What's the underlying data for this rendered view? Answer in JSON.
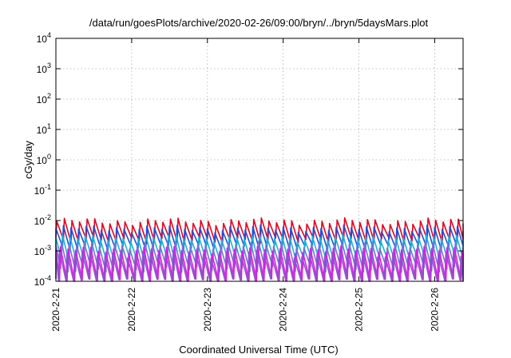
{
  "chart_data": {
    "type": "line",
    "title": "/data/run/goesPlots/archive/2020-02-26/09:00/bryn/../bryn/5daysMars.plot",
    "xlabel": "Coordinated Universal Time (UTC)",
    "ylabel": "cGy/day",
    "y_scale": "log",
    "ylim": [
      0.0001,
      10000
    ],
    "y_ticks": [
      {
        "base": "10",
        "exp": "4"
      },
      {
        "base": "10",
        "exp": "3"
      },
      {
        "base": "10",
        "exp": "2"
      },
      {
        "base": "10",
        "exp": "1"
      },
      {
        "base": "10",
        "exp": "0"
      },
      {
        "base": "10",
        "exp": "-1"
      },
      {
        "base": "10",
        "exp": "-2"
      },
      {
        "base": "10",
        "exp": "-3"
      },
      {
        "base": "10",
        "exp": "-4"
      }
    ],
    "xlim": [
      "2020-02-21",
      "2020-02-26 09:00"
    ],
    "x_ticks": [
      "2020-2-21",
      "2020-2-22",
      "2020-2-23",
      "2020-2-24",
      "2020-2-25",
      "2020-2-26"
    ],
    "grid": true,
    "series": [
      {
        "color": "#e8001c",
        "peak": 0.0095,
        "trough": 0.0022
      },
      {
        "color": "#1f4fe0",
        "peak": 0.0055,
        "trough": 0.0013
      },
      {
        "color": "#19b4d8",
        "peak": 0.0028,
        "trough": 0.0005
      },
      {
        "color": "#7a6fd6",
        "peak": 0.0016,
        "trough": 0.00025
      },
      {
        "color": "#ee10ee",
        "peak": 0.0011,
        "trough": 0.0001
      },
      {
        "color": "#8a56c8",
        "peak": 0.0008,
        "trough": 0.0001
      }
    ],
    "cycle_days": 0.1,
    "pattern": "sawtooth"
  }
}
